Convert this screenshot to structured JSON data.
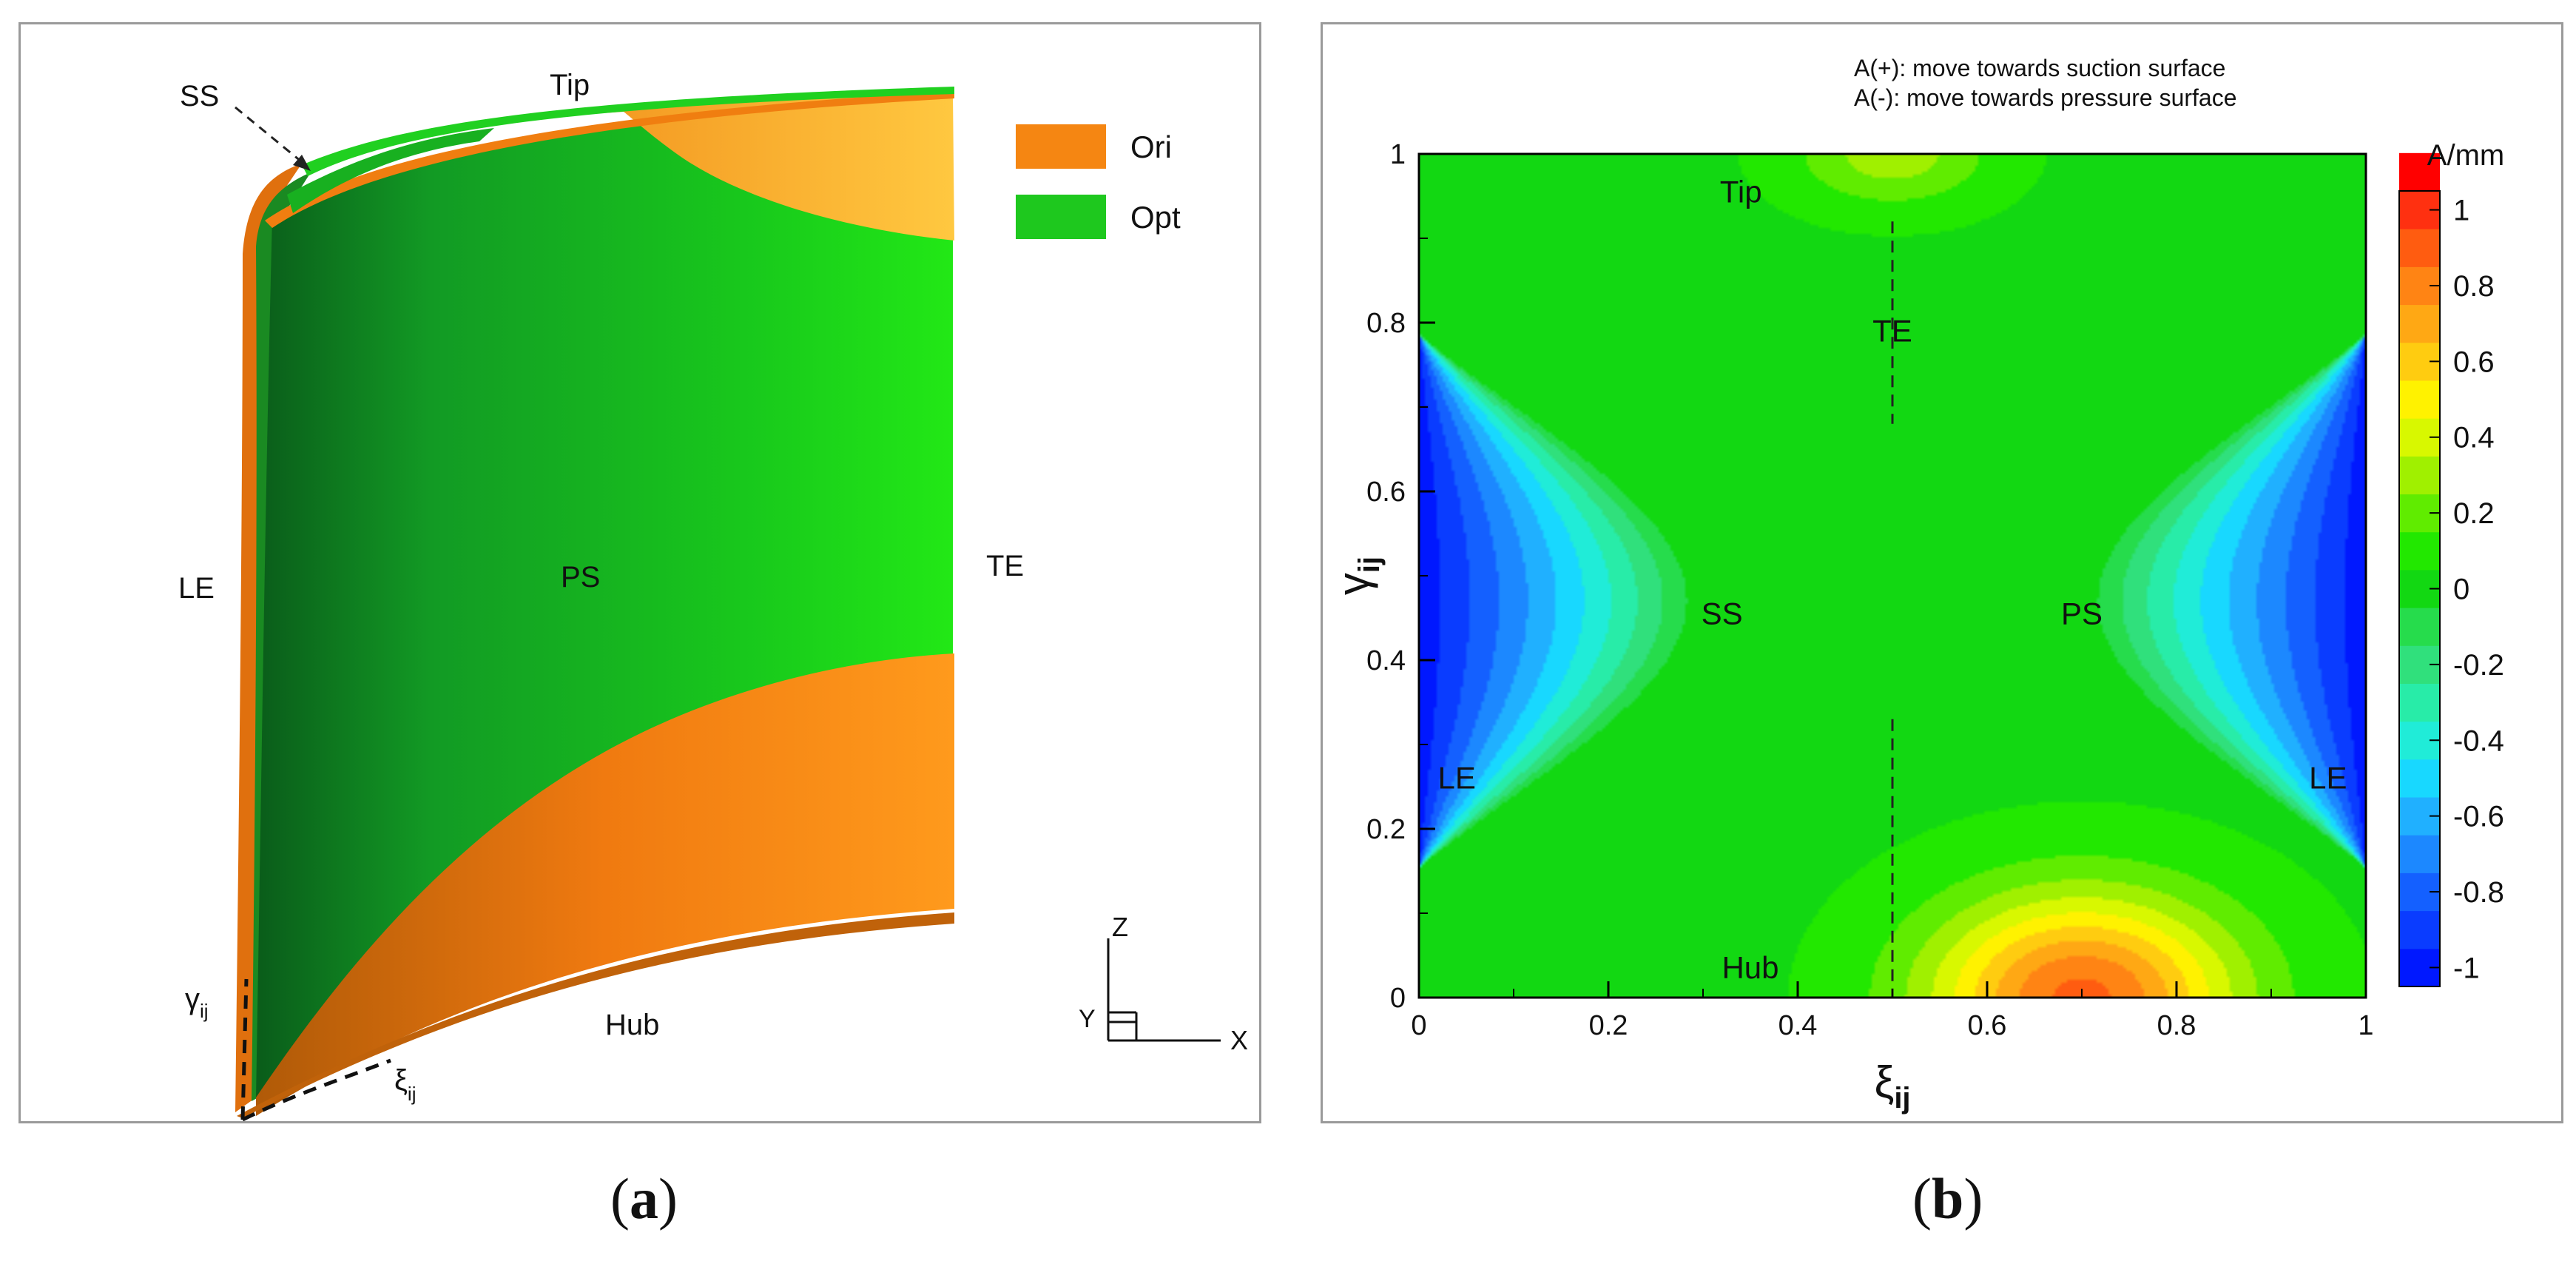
{
  "panel_a": {
    "labels": {
      "ss": "SS",
      "tip": "Tip",
      "le": "LE",
      "ps": "PS",
      "te": "TE",
      "hub": "Hub",
      "gamma": "γ",
      "gamma_sub": "ij",
      "xi": "ξ",
      "xi_sub": "ij"
    },
    "legend": [
      {
        "label": "Ori",
        "color": "#f58612"
      },
      {
        "label": "Opt",
        "color": "#1ec81e"
      }
    ],
    "axes_triad": {
      "z": "Z",
      "y": "Y",
      "x": "X"
    },
    "caption_letter": "a"
  },
  "panel_b": {
    "note_line1": "A(+): move towards suction surface",
    "note_line2": "A(-): move towards pressure surface",
    "caption_letter": "b"
  },
  "chart_data": {
    "type": "heatmap",
    "title": "",
    "xlabel": "ξ",
    "xlabel_sub": "ij",
    "ylabel": "γ",
    "ylabel_sub": "ij",
    "xlim": [
      0,
      1
    ],
    "ylim": [
      0,
      1
    ],
    "x_ticks": [
      "0",
      "0.2",
      "0.4",
      "0.6",
      "0.8",
      "1"
    ],
    "y_ticks": [
      "0",
      "0.2",
      "0.4",
      "0.6",
      "0.8",
      "1"
    ],
    "colorbar": {
      "title": "A/mm",
      "range": [
        -1.05,
        1.05
      ],
      "step": 0.1,
      "tick_labels": [
        "1",
        "0.8",
        "0.6",
        "0.4",
        "0.2",
        "0",
        "-0.2",
        "-0.4",
        "-0.6",
        "-0.8",
        "-1"
      ],
      "tick_values": [
        1,
        0.8,
        0.6,
        0.4,
        0.2,
        0,
        -0.2,
        -0.4,
        -0.6,
        -0.8,
        -1
      ],
      "colors": [
        "#0018ff",
        "#0a3cff",
        "#1460ff",
        "#1c88ff",
        "#20b0ff",
        "#18d8ff",
        "#20ecd8",
        "#28eca8",
        "#30e07c",
        "#26dc4c",
        "#12d812",
        "#22e800",
        "#60ec00",
        "#a0f000",
        "#d8f800",
        "#fff200",
        "#ffcc10",
        "#ffa814",
        "#ff8414",
        "#ff5c10",
        "#ff3010",
        "#ff0000"
      ]
    },
    "annotations": [
      {
        "text": "Tip",
        "x": 0.34,
        "y": 0.955
      },
      {
        "text": "TE",
        "x": 0.5,
        "y": 0.79
      },
      {
        "text": "SS",
        "x": 0.32,
        "y": 0.455
      },
      {
        "text": "PS",
        "x": 0.7,
        "y": 0.455
      },
      {
        "text": "LE",
        "x": 0.04,
        "y": 0.26
      },
      {
        "text": "LE",
        "x": 0.96,
        "y": 0.26
      },
      {
        "text": "Hub",
        "x": 0.35,
        "y": 0.035
      }
    ],
    "field_description": "A(ξ,γ) contours: ≈ -1 near LE corners, rising to 0 toward center line ξ=0.5; positive lobe up to ≈0.8 near hub at ξ≈0.7; slight positive near tip at ξ≈0.5"
  }
}
